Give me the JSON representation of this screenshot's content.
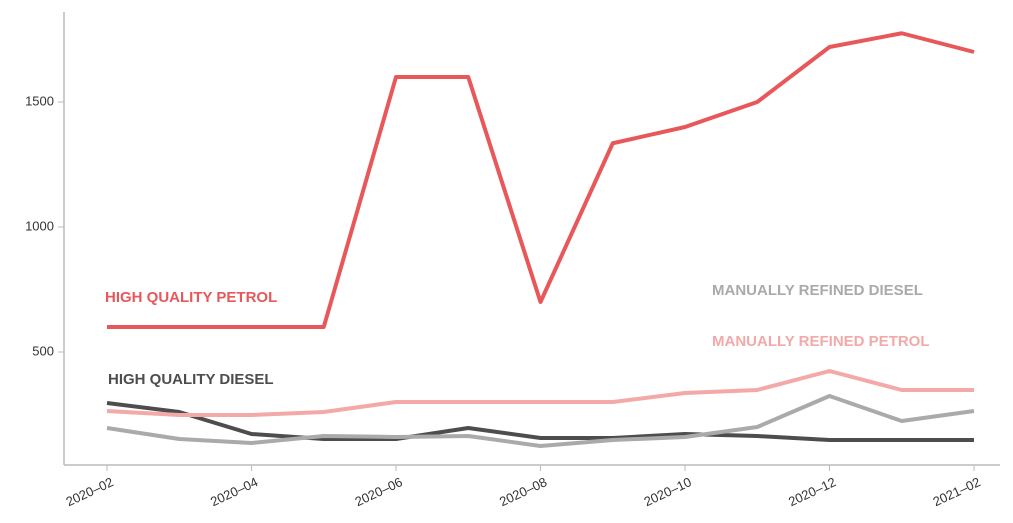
{
  "chart_data": {
    "type": "line",
    "categories": [
      "2020–02",
      null,
      "2020–04",
      null,
      "2020–06",
      null,
      "2020–08",
      null,
      "2020–10",
      null,
      "2020–12",
      null,
      "2021–02"
    ],
    "series": [
      {
        "name": "HIGH QUALITY PETROL",
        "color": "#e8585a",
        "values": [
          600,
          600,
          600,
          600,
          1600,
          1600,
          700,
          1335,
          1400,
          1500,
          1720,
          1775,
          1700
        ]
      },
      {
        "name": "MANUALLY REFINED PETROL",
        "color": "#f2a9a8",
        "values": [
          264,
          248,
          248,
          260,
          300,
          300,
          300,
          300,
          336,
          348,
          424,
          348,
          348
        ]
      },
      {
        "name": "MANUALLY REFINED DIESEL",
        "color": "#aaaaaa",
        "values": [
          196,
          152,
          136,
          164,
          160,
          164,
          124,
          148,
          160,
          200,
          324,
          224,
          264
        ]
      },
      {
        "name": "HIGH QUALITY DIESEL",
        "color": "#4d4d4d",
        "values": [
          296,
          260,
          172,
          152,
          152,
          196,
          156,
          156,
          172,
          164,
          148,
          148,
          148
        ]
      }
    ],
    "ylim": [
      48,
      1860
    ],
    "yticks": [
      500,
      1000,
      1500
    ]
  }
}
